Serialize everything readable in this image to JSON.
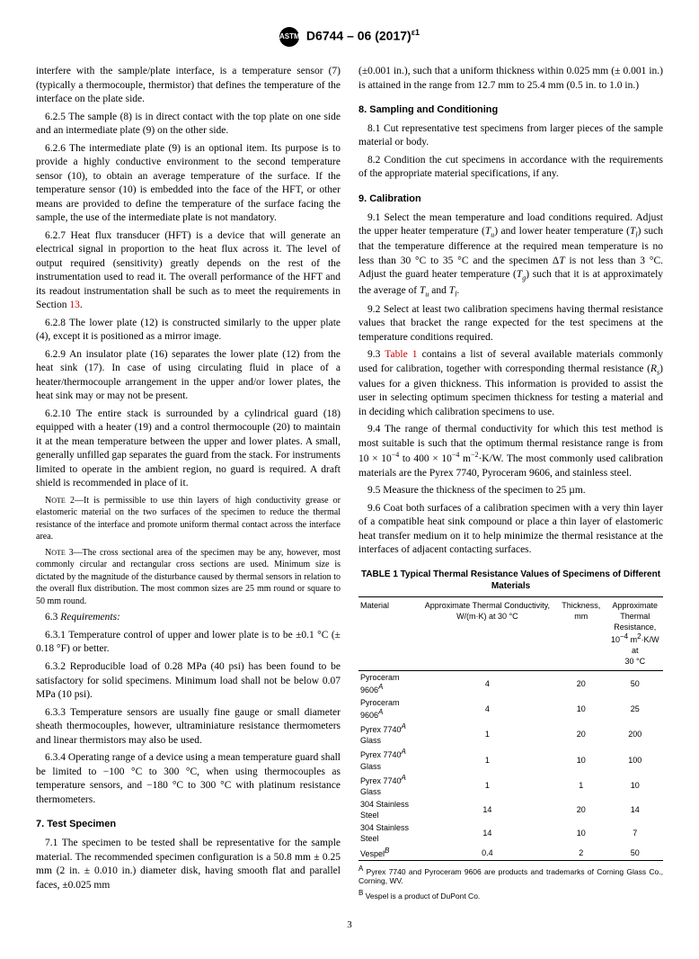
{
  "header": {
    "designation": "D6744 – 06 (2017)",
    "sup": "ε1"
  },
  "col1": {
    "p_intro": "interfere with the sample/plate interface, is a temperature sensor (7) (typically a thermocouple, thermistor) that defines the temperature of the interface on the plate side.",
    "p625": "6.2.5 The sample (8) is in direct contact with the top plate on one side and an intermediate plate (9) on the other side.",
    "p626": "6.2.6 The intermediate plate (9) is an optional item. Its purpose is to provide a highly conductive environment to the second temperature sensor (10), to obtain an average temperature of the surface. If the temperature sensor (10) is embedded into the face of the HFT, or other means are provided to define the temperature of the surface facing the sample, the use of the intermediate plate is not mandatory.",
    "p627a": "6.2.7 Heat flux transducer (HFT) is a device that will generate an electrical signal in proportion to the heat flux across it. The level of output required (sensitivity) greatly depends on the rest of the instrumentation used to read it. The overall performance of the HFT and its readout instrumentation shall be such as to meet the requirements in Section ",
    "p627b": "13",
    "p627c": ".",
    "p628": "6.2.8 The lower plate (12) is constructed similarly to the upper plate (4), except it is positioned as a mirror image.",
    "p629": "6.2.9 An insulator plate (16) separates the lower plate (12) from the heat sink (17). In case of using circulating fluid in place of a heater/thermocouple arrangement in the upper and/or lower plates, the heat sink may or may not be present.",
    "p6210": "6.2.10 The entire stack is surrounded by a cylindrical guard (18) equipped with a heater (19) and a control thermocouple (20) to maintain it at the mean temperature between the upper and lower plates. A small, generally unfilled gap separates the guard from the stack. For instruments limited to operate in the ambient region, no guard is required. A draft shield is recommended in place of it.",
    "note2": "NOTE 2—It is permissible to use thin layers of high conductivity grease or elastomeric material on the two surfaces of the specimen to reduce the thermal resistance of the interface and promote uniform thermal contact across the interface area.",
    "note3": "NOTE 3—The cross sectional area of the specimen may be any, however, most commonly circular and rectangular cross sections are used. Minimum size is dictated by the magnitude of the disturbance caused by thermal sensors in relation to the overall flux distribution. The most common sizes are 25 mm round or square to 50 mm round.",
    "p63": "6.3 Requirements:",
    "p631": "6.3.1 Temperature control of upper and lower plate is to be ±0.1 °C (± 0.18 °F) or better.",
    "p632": "6.3.2 Reproducible load of 0.28 MPa (40 psi) has been found to be satisfactory for solid specimens. Minimum load shall not be below 0.07 MPa (10 psi).",
    "p633": "6.3.3 Temperature sensors are usually fine gauge or small diameter sheath thermocouples, however, ultraminiature resistance thermometers and linear thermistors may also be used.",
    "p634": "6.3.4 Operating range of a device using a mean temperature guard shall be limited to −100 °C to 300 °C, when using thermocouples as temperature sensors, and −180 °C to 300 °C with platinum resistance thermometers.",
    "s7title": "7. Test Specimen",
    "p71": "7.1 The specimen to be tested shall be representative for the sample material. The recommended specimen configuration is a 50.8 mm ± 0.25 mm (2 in. ± 0.010 in.) diameter disk, having smooth flat and parallel faces, ±0.025 mm"
  },
  "col2": {
    "p71cont": "(±0.001 in.), such that a uniform thickness within 0.025 mm (± 0.001 in.) is attained in the range from 12.7 mm to 25.4 mm (0.5 in. to 1.0 in.)",
    "s8title": "8. Sampling and Conditioning",
    "p81": "8.1 Cut representative test specimens from larger pieces of the sample material or body.",
    "p82": "8.2 Condition the cut specimens in accordance with the requirements of the appropriate material specifications, if any.",
    "s9title": "9. Calibration",
    "p91": "9.1 Select the mean temperature and load conditions required. Adjust the upper heater temperature (Tu) and lower heater temperature (Tl) such that the temperature difference at the required mean temperature is no less than 30 °C to 35 °C and the specimen ΔT is not less than 3 °C. Adjust the guard heater temperature (Tg) such that it is at approximately the average of Tu and Tl.",
    "p92": "9.2 Select at least two calibration specimens having thermal resistance values that bracket the range expected for the test specimens at the temperature conditions required.",
    "p93a": "9.3 ",
    "p93b": "Table 1",
    "p93c": " contains a list of several available materials commonly used for calibration, together with corresponding thermal resistance (Rs) values for a given thickness. This information is provided to assist the user in selecting optimum specimen thickness for testing a material and in deciding which calibration specimens to use.",
    "p94": "9.4 The range of thermal conductivity for which this test method is most suitable is such that the optimum thermal resistance range is from 10 × 10⁻⁴ to 400 × 10⁻⁴ m⁻²·K/W. The most commonly used calibration materials are the Pyrex 7740, Pyroceram 9606, and stainless steel.",
    "p95": "9.5 Measure the thickness of the specimen to 25 µm.",
    "p96": "9.6 Coat both surfaces of a calibration specimen with a very thin layer of a compatible heat sink compound or place a thin layer of elastomeric heat transfer medium on it to help minimize the thermal resistance at the interfaces of adjacent contacting surfaces."
  },
  "table": {
    "title": "TABLE 1 Typical Thermal Resistance Values of Specimens of Different Materials",
    "headers": [
      "Material",
      "Approximate Thermal Conductivity, W/(m·K) at 30 °C",
      "Thickness, mm",
      "Approximate Thermal Resistance, 10⁻⁴ m²·K/W at 30 °C"
    ],
    "rows": [
      [
        "Pyroceram 9606ᴬ",
        "4",
        "20",
        "50"
      ],
      [
        "Pyroceram 9606ᴬ",
        "4",
        "10",
        "25"
      ],
      [
        "Pyrex 7740ᴬ Glass",
        "1",
        "20",
        "200"
      ],
      [
        "Pyrex 7740ᴬ Glass",
        "1",
        "10",
        "100"
      ],
      [
        "Pyrex 7740ᴬ Glass",
        "1",
        "1",
        "10"
      ],
      [
        "304 Stainless Steel",
        "14",
        "20",
        "14"
      ],
      [
        "304 Stainless Steel",
        "14",
        "10",
        "7"
      ],
      [
        "Vespelᴮ",
        "0.4",
        "2",
        "50"
      ]
    ],
    "footA": "ᴬ Pyrex 7740 and Pyroceram 9606 are products and trademarks of Corning Glass Co., Corning, WV.",
    "footB": "ᴮ Vespel is a product of DuPont Co."
  },
  "page": "3"
}
